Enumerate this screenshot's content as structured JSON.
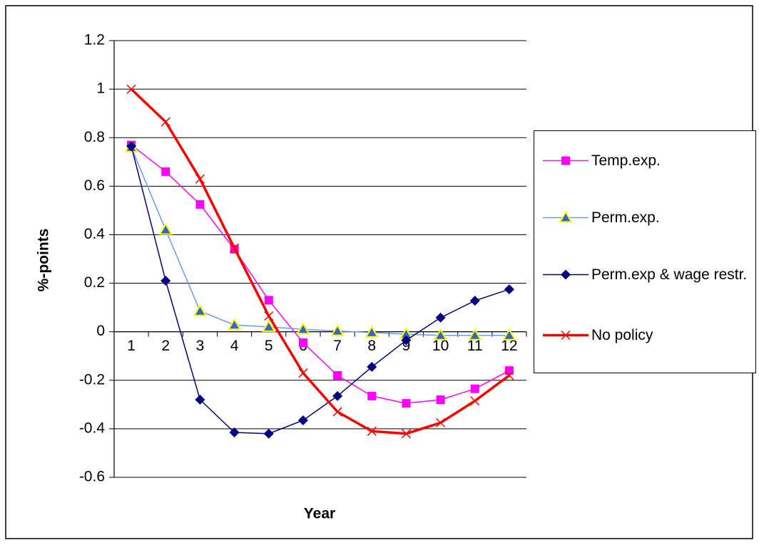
{
  "chart_data": {
    "type": "line",
    "x_label": "Year",
    "y_label": "%-points",
    "categories": [
      "1",
      "2",
      "3",
      "4",
      "5",
      "6",
      "7",
      "8",
      "9",
      "10",
      "11",
      "12"
    ],
    "ylim": [
      -0.6,
      1.2
    ],
    "yticks": [
      -0.6,
      -0.4,
      -0.2,
      0,
      0.2,
      0.4,
      0.6,
      0.8,
      1,
      1.2
    ],
    "grid": true,
    "legend": "right",
    "series": [
      {
        "name": "Temp.exp.",
        "color": "#ff00ff",
        "marker": "square",
        "marker_color": "#ff00ff",
        "line_width": 1.5,
        "values": [
          0.77,
          0.66,
          0.525,
          0.34,
          0.13,
          -0.045,
          -0.18,
          -0.265,
          -0.295,
          -0.28,
          -0.235,
          -0.16
        ]
      },
      {
        "name": "Perm.exp.",
        "color": "#6699ff",
        "marker": "triangle",
        "marker_color": "#3366cc",
        "line_width": 1.5,
        "values": [
          0.76,
          0.42,
          0.085,
          0.028,
          0.02,
          0.01,
          0.003,
          -0.003,
          -0.01,
          -0.015,
          -0.015,
          -0.015
        ]
      },
      {
        "name": "Perm.exp & wage restr.",
        "color": "#000080",
        "marker": "diamond",
        "marker_color": "#000080",
        "line_width": 1.5,
        "values": [
          0.765,
          0.21,
          -0.28,
          -0.415,
          -0.42,
          -0.365,
          -0.265,
          -0.145,
          -0.035,
          0.058,
          0.128,
          0.175
        ]
      },
      {
        "name": "No policy",
        "color": "#ff0000",
        "marker": "x",
        "marker_color": "#ff0000",
        "line_width": 3.5,
        "values": [
          1.0,
          0.865,
          0.63,
          0.345,
          0.065,
          -0.17,
          -0.33,
          -0.41,
          -0.42,
          -0.375,
          -0.285,
          -0.18
        ]
      }
    ]
  }
}
